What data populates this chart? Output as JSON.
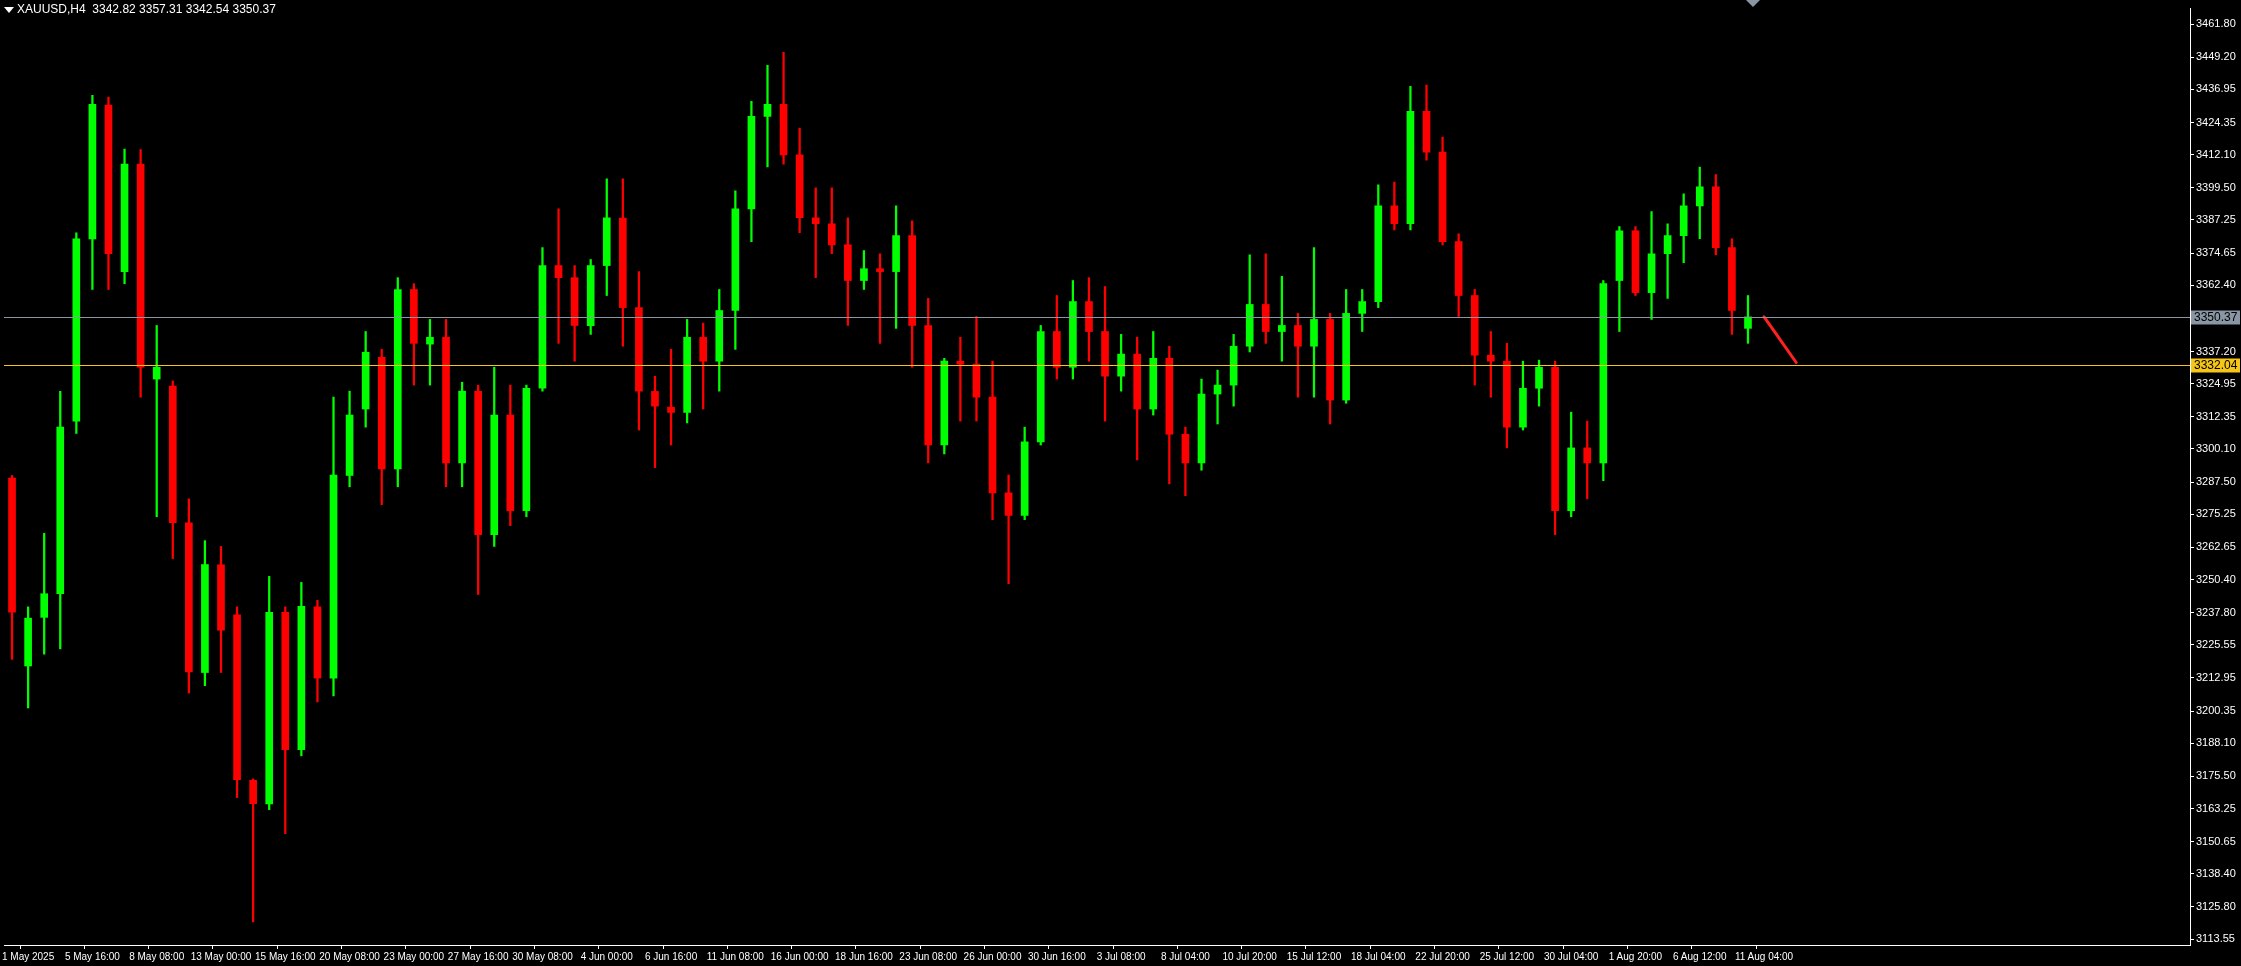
{
  "chart_data": {
    "type": "candlestick",
    "title": "XAUUSD,H4  3342.82 3357.31 3342.54 3350.37",
    "categories": [
      null,
      "1 May 2025",
      null,
      null,
      null,
      "5 May 16:00",
      null,
      null,
      null,
      "8 May 08:00",
      null,
      null,
      null,
      "13 May 00:00",
      null,
      null,
      null,
      "15 May 16:00",
      null,
      null,
      null,
      "20 May 08:00",
      null,
      null,
      null,
      "23 May 00:00",
      null,
      null,
      null,
      "27 May 16:00",
      null,
      null,
      null,
      "30 May 08:00",
      null,
      null,
      null,
      "4 Jun 00:00",
      null,
      null,
      null,
      "6 Jun 16:00",
      null,
      null,
      null,
      "11 Jun 08:00",
      null,
      null,
      null,
      "16 Jun 00:00",
      null,
      null,
      null,
      "18 Jun 16:00",
      null,
      null,
      null,
      "23 Jun 08:00",
      null,
      null,
      null,
      "26 Jun 00:00",
      null,
      null,
      null,
      "30 Jun 16:00",
      null,
      null,
      null,
      "3 Jul 08:00",
      null,
      null,
      null,
      "8 Jul 04:00",
      null,
      null,
      null,
      "10 Jul 20:00",
      null,
      null,
      null,
      "15 Jul 12:00",
      null,
      null,
      null,
      "18 Jul 04:00",
      null,
      null,
      null,
      "22 Jul 20:00",
      null,
      null,
      null,
      "25 Jul 12:00",
      null,
      null,
      null,
      "30 Jul 04:00",
      null,
      null,
      null,
      "1 Aug 20:00",
      null,
      null,
      null,
      "6 Aug 12:00",
      null,
      null,
      null,
      "11 Aug 04:00",
      null,
      null,
      null,
      null,
      null,
      null,
      null,
      null,
      null,
      null,
      null,
      null,
      null,
      null,
      null,
      null,
      null,
      null,
      null,
      null,
      null,
      null,
      null,
      null,
      null,
      null
    ],
    "series": [
      {
        "type": "candlestick",
        "ohlc": [
          [
            3289,
            3290,
            3220,
            3238
          ],
          [
            3217.5,
            3240,
            3201.5,
            3235.7
          ],
          [
            3236,
            3268,
            3222,
            3245
          ],
          [
            3245,
            3322,
            3224,
            3308.4
          ],
          [
            3310.7,
            3382.4,
            3306,
            3380.1
          ],
          [
            3380,
            3434.7,
            3360.8,
            3431.3
          ],
          [
            3431,
            3434,
            3360.8,
            3374.4
          ],
          [
            3367.6,
            3414.2,
            3363,
            3408.5
          ],
          [
            3408.5,
            3414,
            3319.8,
            3331.2
          ],
          [
            3326.7,
            3347.1,
            3274.3,
            3331.2
          ],
          [
            3324,
            3326,
            3258.4,
            3272
          ],
          [
            3272,
            3281.1,
            3207.2,
            3215.2
          ],
          [
            3215,
            3265.2,
            3210,
            3256.1
          ],
          [
            3256,
            3263,
            3215,
            3231.1
          ],
          [
            3237,
            3240,
            3167.4,
            3174.2
          ],
          [
            3174,
            3174.5,
            3120.1,
            3165.1
          ],
          [
            3165,
            3251.6,
            3162.8,
            3237.9
          ],
          [
            3237.9,
            3240,
            3153.7,
            3185.6
          ],
          [
            3185.6,
            3249.3,
            3183.3,
            3240.2
          ],
          [
            3240,
            3242.5,
            3203.8,
            3212.9
          ],
          [
            3212.9,
            3319.8,
            3206.1,
            3290.2
          ],
          [
            3290,
            3322.1,
            3285.7,
            3313
          ],
          [
            3315.3,
            3344.8,
            3308.4,
            3336.9
          ],
          [
            3335,
            3338,
            3278.9,
            3292.5
          ],
          [
            3292.5,
            3365.3,
            3285.7,
            3360.8
          ],
          [
            3360.8,
            3363,
            3324.4,
            3340.3
          ],
          [
            3340,
            3349.4,
            3324.4,
            3342.6
          ],
          [
            3342.6,
            3349.4,
            3285.7,
            3294.8
          ],
          [
            3294.8,
            3325.5,
            3285.7,
            3322.1
          ],
          [
            3322,
            3324.4,
            3244.7,
            3267.5
          ],
          [
            3267.5,
            3331.2,
            3263,
            3313
          ],
          [
            3313,
            3324.4,
            3270.9,
            3276.6
          ],
          [
            3276.6,
            3324.4,
            3274.3,
            3323.2
          ],
          [
            3323.2,
            3376.7,
            3322.1,
            3369.9
          ],
          [
            3369.9,
            3391.5,
            3340.3,
            3365.3
          ],
          [
            3365.3,
            3369.9,
            3333.5,
            3347.1
          ],
          [
            3347,
            3372.2,
            3343.7,
            3369.9
          ],
          [
            3369.9,
            3402.9,
            3358.5,
            3388.1
          ],
          [
            3388,
            3402.9,
            3339.2,
            3353.9
          ],
          [
            3353.9,
            3367.6,
            3307.3,
            3322.1
          ],
          [
            3322,
            3327.8,
            3293,
            3316.4
          ],
          [
            3316,
            3338,
            3301.6,
            3314
          ],
          [
            3314,
            3349.4,
            3310,
            3342.6
          ],
          [
            3342.6,
            3348,
            3315.3,
            3333.5
          ],
          [
            3333.5,
            3360.8,
            3322.1,
            3352.8
          ],
          [
            3352.8,
            3398.3,
            3338,
            3391.5
          ],
          [
            3391.5,
            3432.4,
            3379,
            3426.7
          ],
          [
            3426.7,
            3446.1,
            3407.4,
            3431.3
          ],
          [
            3431.3,
            3451.1,
            3408.5,
            3412
          ],
          [
            3412,
            3422.2,
            3382.4,
            3388.1
          ],
          [
            3388.1,
            3399.5,
            3365.3,
            3385.8
          ],
          [
            3385.8,
            3399.5,
            3374.4,
            3377.8
          ],
          [
            3377.8,
            3388.1,
            3347.1,
            3364.2
          ],
          [
            3364.2,
            3375.6,
            3360.8,
            3368.7
          ],
          [
            3368.7,
            3374.4,
            3340.3,
            3367.6
          ],
          [
            3367.6,
            3392.6,
            3346,
            3381.3
          ],
          [
            3381.3,
            3386.9,
            3331.2,
            3347.1
          ],
          [
            3347.1,
            3357.4,
            3294.8,
            3301.6
          ],
          [
            3301.6,
            3334.6,
            3298.2,
            3333.5
          ],
          [
            3333.5,
            3342.6,
            3310.7,
            3332.4
          ],
          [
            3332.4,
            3350.5,
            3310.7,
            3319.8
          ],
          [
            3319.8,
            3333.5,
            3273.2,
            3283.4
          ],
          [
            3283.4,
            3290.2,
            3248.8,
            3274.8
          ],
          [
            3274.8,
            3308.4,
            3273.2,
            3302.8
          ],
          [
            3302.8,
            3347.1,
            3301.6,
            3344.8
          ],
          [
            3344.8,
            3358.5,
            3326.7,
            3331.2
          ],
          [
            3331.2,
            3364.2,
            3326.7,
            3356.2
          ],
          [
            3356.2,
            3365.3,
            3333.5,
            3344.8
          ],
          [
            3344.8,
            3361.9,
            3310.7,
            3327.8
          ],
          [
            3327.8,
            3343.7,
            3322.1,
            3336.2
          ],
          [
            3336.2,
            3342.6,
            3295.9,
            3315.3
          ],
          [
            3315.3,
            3344.8,
            3313,
            3334.6
          ],
          [
            3334.6,
            3339.2,
            3286.8,
            3305.7
          ],
          [
            3305.7,
            3308.4,
            3282.3,
            3294.8
          ],
          [
            3294.8,
            3326.7,
            3292,
            3321
          ],
          [
            3321,
            3330.1,
            3309.6,
            3324.4
          ],
          [
            3324.4,
            3343.7,
            3316.4,
            3339.2
          ],
          [
            3339.2,
            3374,
            3337,
            3355.1
          ],
          [
            3355.1,
            3374.4,
            3340.3,
            3344.8
          ],
          [
            3344.8,
            3365.8,
            3333.5,
            3347.1
          ],
          [
            3347.1,
            3351.7,
            3319.8,
            3339.2
          ],
          [
            3339.2,
            3376.7,
            3319.8,
            3349.4
          ],
          [
            3349.4,
            3351.7,
            3309.6,
            3318.7
          ],
          [
            3318.7,
            3360.8,
            3317.5,
            3351.7
          ],
          [
            3351.7,
            3360.8,
            3344.8,
            3356.2
          ],
          [
            3356.2,
            3400.6,
            3353.9,
            3392.6
          ],
          [
            3392.6,
            3401.7,
            3383.5,
            3385.8
          ],
          [
            3385.8,
            3438.1,
            3383.5,
            3428.6
          ],
          [
            3428.6,
            3438.6,
            3410,
            3413.1
          ],
          [
            3413.1,
            3418.8,
            3377.8,
            3379
          ],
          [
            3379,
            3382,
            3350.5,
            3358.5
          ],
          [
            3358.5,
            3360.8,
            3324.4,
            3335.8
          ],
          [
            3335.8,
            3344.8,
            3319.8,
            3333.5
          ],
          [
            3333.5,
            3340.3,
            3300.5,
            3308.4
          ],
          [
            3308.4,
            3333.5,
            3307.3,
            3323.2
          ],
          [
            3323.2,
            3333.9,
            3316.4,
            3331.2
          ],
          [
            3331.2,
            3333.5,
            3267.5,
            3276.6
          ],
          [
            3276.6,
            3314.1,
            3274.3,
            3300.5
          ],
          [
            3300.5,
            3310.7,
            3281.1,
            3294.8
          ],
          [
            3294.8,
            3364.2,
            3288,
            3363
          ],
          [
            3364.2,
            3384.7,
            3344.8,
            3383.1
          ],
          [
            3383.1,
            3384.7,
            3358.5,
            3359.6
          ],
          [
            3359.6,
            3390.4,
            3349.4,
            3374.4
          ],
          [
            3374.4,
            3385.8,
            3357.4,
            3381.3
          ],
          [
            3381.3,
            3397.2,
            3371,
            3392.6
          ],
          [
            3392.6,
            3407.4,
            3380.1,
            3399.9
          ],
          [
            3399.9,
            3404.5,
            3374,
            3376.7
          ],
          [
            3376.7,
            3380.1,
            3343.7,
            3352.8
          ],
          [
            3346,
            3358.5,
            3340.3,
            3350.37
          ],
          null,
          null,
          null,
          null,
          null,
          null,
          null,
          null,
          null,
          null,
          null,
          null,
          null,
          null,
          null,
          null,
          null,
          null,
          null,
          null,
          null,
          null,
          null,
          null,
          null,
          null,
          null
        ],
        "colors": [
          "#ff0000",
          "#00ff00",
          "#00ff00",
          "#00ff00",
          "#00ff00",
          "#00ff00",
          "#ff0000",
          "#00ff00",
          "#ff0000",
          "#00ff00",
          "#ff0000",
          "#ff0000",
          "#00ff00",
          "#ff0000",
          "#ff0000",
          "#ff0000",
          "#00ff00",
          "#ff0000",
          "#00ff00",
          "#ff0000",
          "#00ff00",
          "#00ff00",
          "#00ff00",
          "#ff0000",
          "#00ff00",
          "#ff0000",
          "#00ff00",
          "#ff0000",
          "#00ff00",
          "#ff0000",
          "#00ff00",
          "#ff0000",
          "#00ff00",
          "#00ff00",
          "#ff0000",
          "#ff0000",
          "#00ff00",
          "#00ff00",
          "#ff0000",
          "#ff0000",
          "#ff0000",
          "#ff0000",
          "#00ff00",
          "#ff0000",
          "#00ff00",
          "#00ff00",
          "#00ff00",
          "#00ff00",
          "#ff0000",
          "#ff0000",
          "#ff0000",
          "#ff0000",
          "#ff0000",
          "#00ff00",
          "#ff0000",
          "#00ff00",
          "#ff0000",
          "#ff0000",
          "#00ff00",
          "#ff0000",
          "#ff0000",
          "#ff0000",
          "#ff0000",
          "#00ff00",
          "#00ff00",
          "#ff0000",
          "#00ff00",
          "#ff0000",
          "#ff0000",
          "#00ff00",
          "#ff0000",
          "#00ff00",
          "#ff0000",
          "#ff0000",
          "#00ff00",
          "#00ff00",
          "#00ff00",
          "#00ff00",
          "#ff0000",
          "#00ff00",
          "#ff0000",
          "#00ff00",
          "#ff0000",
          "#00ff00",
          "#00ff00",
          "#00ff00",
          "#ff0000",
          "#00ff00",
          "#ff0000",
          "#ff0000",
          "#ff0000",
          "#ff0000",
          "#ff0000",
          "#ff0000",
          "#00ff00",
          "#00ff00",
          "#ff0000",
          "#00ff00",
          "#ff0000",
          "#00ff00",
          "#00ff00",
          "#ff0000",
          "#00ff00",
          "#00ff00",
          "#00ff00",
          "#00ff00",
          "#ff0000",
          "#ff0000",
          "#00ff00",
          null,
          null,
          null,
          null,
          null,
          null,
          null,
          null,
          null,
          null,
          null,
          null,
          null,
          null,
          null,
          null,
          null,
          null,
          null,
          null,
          null,
          null,
          null,
          null,
          null,
          null,
          null
        ]
      },
      {
        "type": "line",
        "color": "#ff2020",
        "values": [
          null,
          null,
          null,
          null,
          null,
          null,
          null,
          null,
          null,
          null,
          null,
          null,
          null,
          null,
          null,
          null,
          null,
          null,
          null,
          null,
          null,
          null,
          null,
          null,
          null,
          null,
          null,
          null,
          null,
          null,
          null,
          null,
          null,
          null,
          null,
          null,
          null,
          null,
          null,
          null,
          null,
          null,
          null,
          null,
          null,
          null,
          null,
          null,
          null,
          null,
          null,
          null,
          null,
          null,
          null,
          null,
          null,
          null,
          null,
          null,
          null,
          null,
          null,
          null,
          null,
          null,
          null,
          null,
          null,
          null,
          null,
          null,
          null,
          null,
          null,
          null,
          null,
          null,
          null,
          null,
          null,
          null,
          null,
          null,
          null,
          null,
          null,
          null,
          null,
          null,
          null,
          null,
          null,
          null,
          null,
          null,
          null,
          null,
          null,
          null,
          null,
          null,
          null,
          null,
          null,
          null,
          null,
          null,
          null,
          3350.4,
          null,
          3333,
          null,
          null,
          null,
          null,
          null,
          null,
          null,
          null,
          null,
          null,
          null,
          null,
          null,
          null,
          null,
          null,
          null,
          null,
          null,
          null,
          null,
          null,
          null,
          null
        ]
      }
    ],
    "ylim": [
      3111.3,
      3467.7
    ],
    "yticks": [
      {
        "value": 3461.8,
        "label": "3461.80"
      },
      {
        "value": 3449.2,
        "label": "3449.20"
      },
      {
        "value": 3436.95,
        "label": "3436.95"
      },
      {
        "value": 3424.35,
        "label": "3424.35"
      },
      {
        "value": 3412.1,
        "label": "3412.10"
      },
      {
        "value": 3399.5,
        "label": "3399.50"
      },
      {
        "value": 3387.25,
        "label": "3387.25"
      },
      {
        "value": 3374.65,
        "label": "3374.65"
      },
      {
        "value": 3362.4,
        "label": "3362.40"
      },
      {
        "value": 3337.2,
        "label": "3337.20"
      },
      {
        "value": 3324.95,
        "label": "3324.95"
      },
      {
        "value": 3312.35,
        "label": "3312.35"
      },
      {
        "value": 3300.1,
        "label": "3300.10"
      },
      {
        "value": 3287.5,
        "label": "3287.50"
      },
      {
        "value": 3275.25,
        "label": "3275.25"
      },
      {
        "value": 3262.65,
        "label": "3262.65"
      },
      {
        "value": 3250.4,
        "label": "3250.40"
      },
      {
        "value": 3237.8,
        "label": "3237.80"
      },
      {
        "value": 3225.55,
        "label": "3225.55"
      },
      {
        "value": 3212.95,
        "label": "3212.95"
      },
      {
        "value": 3200.35,
        "label": "3200.35"
      },
      {
        "value": 3188.1,
        "label": "3188.10"
      },
      {
        "value": 3175.5,
        "label": "3175.50"
      },
      {
        "value": 3163.25,
        "label": "3163.25"
      },
      {
        "value": 3150.65,
        "label": "3150.65"
      },
      {
        "value": 3138.4,
        "label": "3138.40"
      },
      {
        "value": 3125.8,
        "label": "3125.80"
      },
      {
        "value": 3113.55,
        "label": "3113.55"
      }
    ],
    "ref_lines": [
      {
        "axis": "y",
        "value": 3350.37,
        "label": "3350.37",
        "color": "#8a96a3"
      },
      {
        "axis": "y",
        "value": 3332.04,
        "label": "3332.04",
        "color": "#f5c518"
      }
    ]
  }
}
